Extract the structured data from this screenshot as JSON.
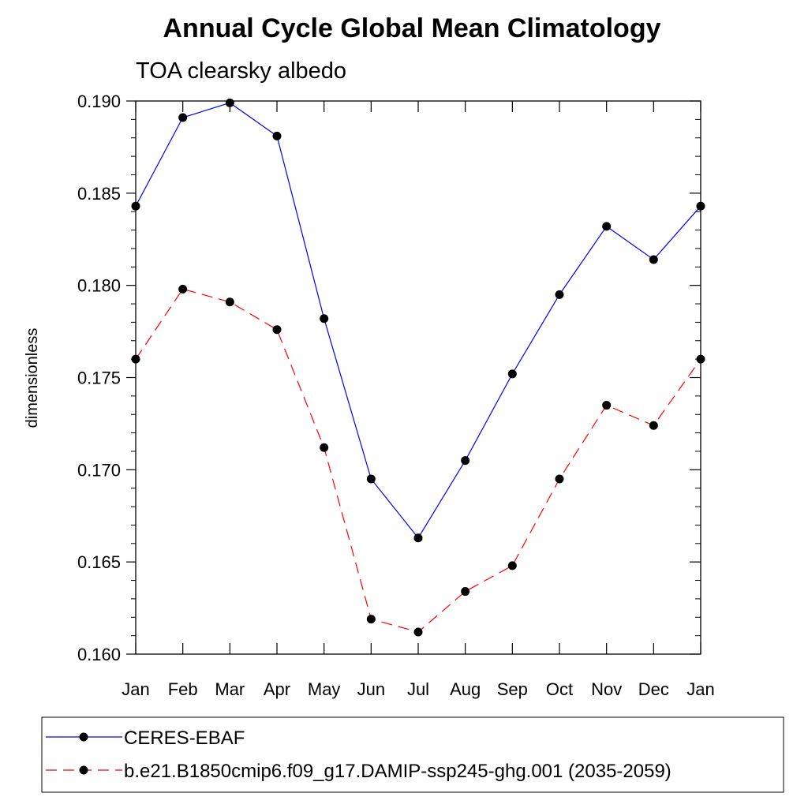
{
  "chart_data": {
    "type": "line",
    "title": "Annual Cycle Global Mean Climatology",
    "subtitle": "TOA clearsky albedo",
    "xlabel": "",
    "ylabel": "dimensionless",
    "categories": [
      "Jan",
      "Feb",
      "Mar",
      "Apr",
      "May",
      "Jun",
      "Jul",
      "Aug",
      "Sep",
      "Oct",
      "Nov",
      "Dec",
      "Jan"
    ],
    "ylim": [
      0.16,
      0.19
    ],
    "yticks": [
      "0.160",
      "0.165",
      "0.170",
      "0.175",
      "0.180",
      "0.185",
      "0.190"
    ],
    "series": [
      {
        "name": "CERES-EBAF",
        "color": "#0000ff",
        "style": "solid",
        "marker": "filled-circle",
        "values": [
          0.1843,
          0.1891,
          0.1899,
          0.1881,
          0.1782,
          0.1695,
          0.1663,
          0.1705,
          0.1752,
          0.1795,
          0.1832,
          0.1814,
          0.1843
        ]
      },
      {
        "name": "b.e21.B1850cmip6.f09_g17.DAMIP-ssp245-ghg.001 (2035-2059)",
        "color": "#ff0000",
        "style": "dashed",
        "marker": "filled-circle",
        "values": [
          0.176,
          0.1798,
          0.1791,
          0.1776,
          0.1712,
          0.1619,
          0.1612,
          0.1634,
          0.1648,
          0.1695,
          0.1735,
          0.1724,
          0.176
        ]
      }
    ],
    "grid": false,
    "legend_position": "bottom"
  }
}
